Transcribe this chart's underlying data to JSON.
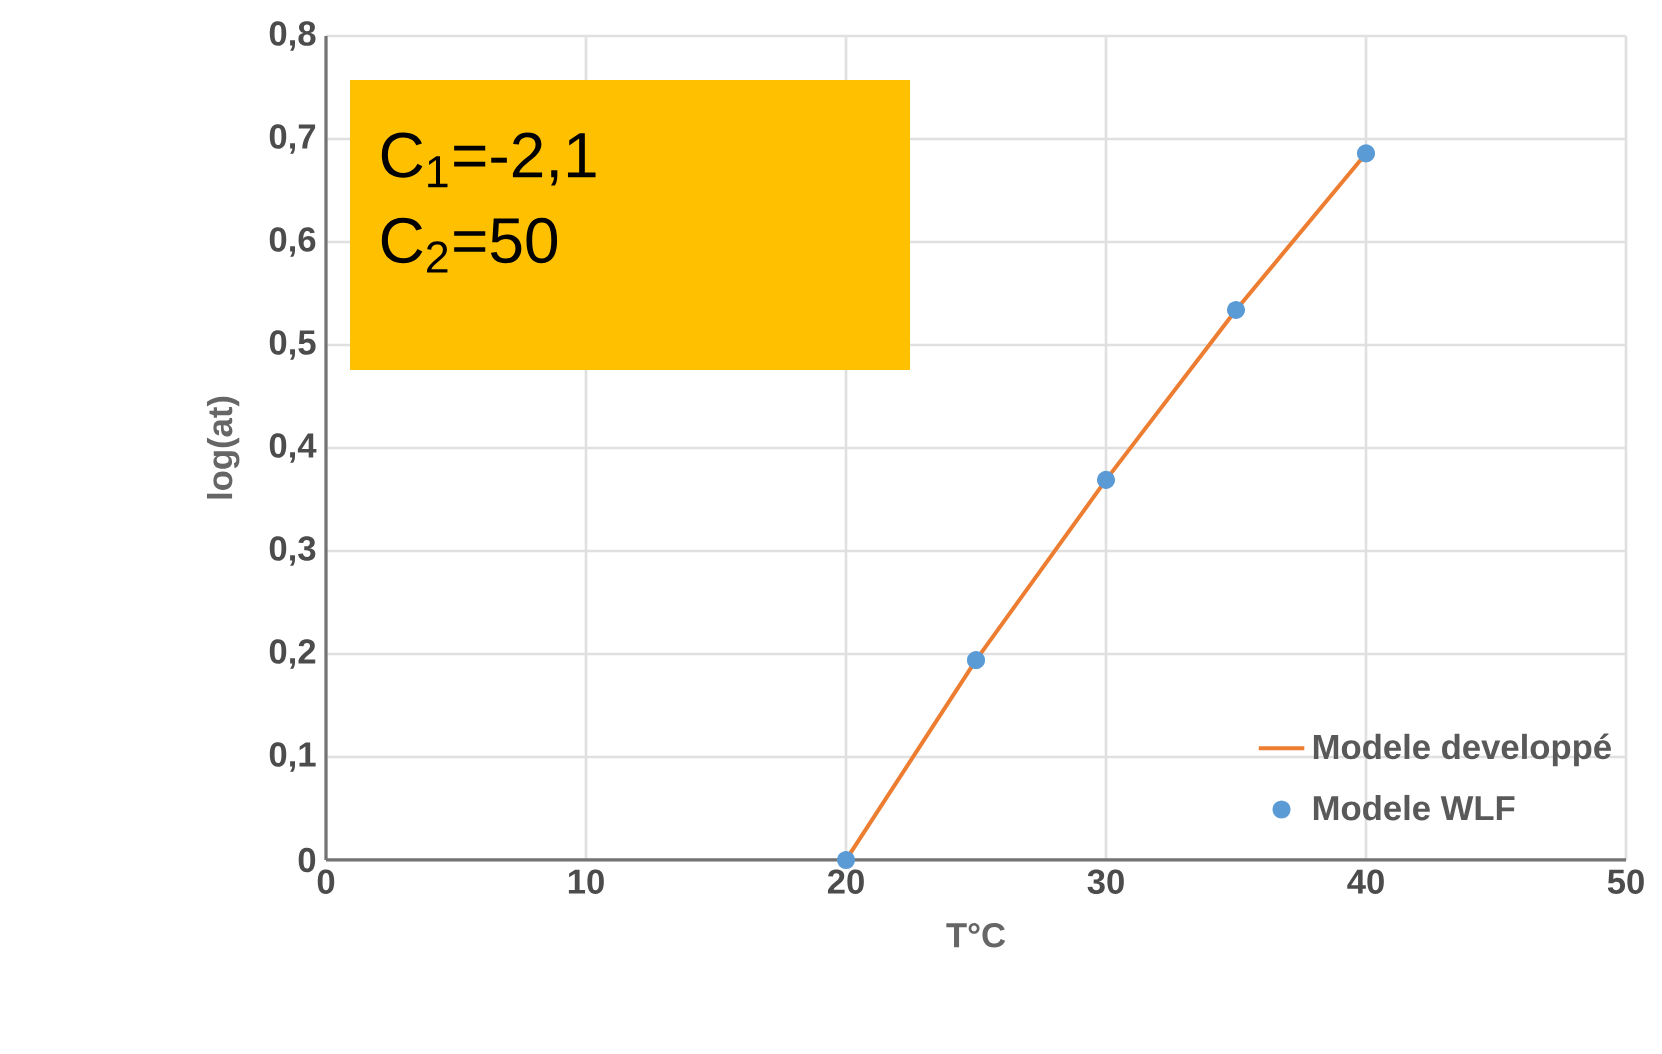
{
  "chart_data": {
    "type": "line",
    "xlabel": "T°C",
    "ylabel": "log(at)",
    "annotations": [
      "C$_{1}$=-2,1",
      "C$_{2}$=50"
    ],
    "xlim": [
      0,
      50
    ],
    "xticks": [
      0,
      10,
      20,
      30,
      40,
      50
    ],
    "ylim": [
      0,
      0.8
    ],
    "yticks": [
      0,
      {
        "value": 0.1,
        "label": "0,1"
      },
      {
        "value": 0.2,
        "label": "0,2"
      },
      {
        "value": 0.3,
        "label": "0,3"
      },
      {
        "value": 0.4,
        "label": "0,4"
      },
      {
        "value": 0.5,
        "label": "0,5"
      },
      {
        "value": 0.6,
        "label": "0,6"
      },
      {
        "value": 0.7,
        "label": "0,7"
      },
      {
        "value": 0.8,
        "label": "0,8"
      }
    ],
    "grid": true,
    "legend": "bottom right",
    "series": [
      {
        "name": "Modele developpé",
        "marker": "none",
        "color": "#ed7d31",
        "x": [
          20,
          25,
          30,
          35,
          40
        ],
        "values": [
          0,
          0.194,
          0.369,
          0.534,
          0.686
        ]
      },
      {
        "name": "Modele WLF",
        "type": "scatter",
        "marker": "circle",
        "color": "#5b9bd5",
        "x": [
          20,
          25,
          30,
          35,
          40
        ],
        "values": [
          0,
          0.194,
          0.369,
          0.534,
          0.686
        ]
      }
    ]
  }
}
